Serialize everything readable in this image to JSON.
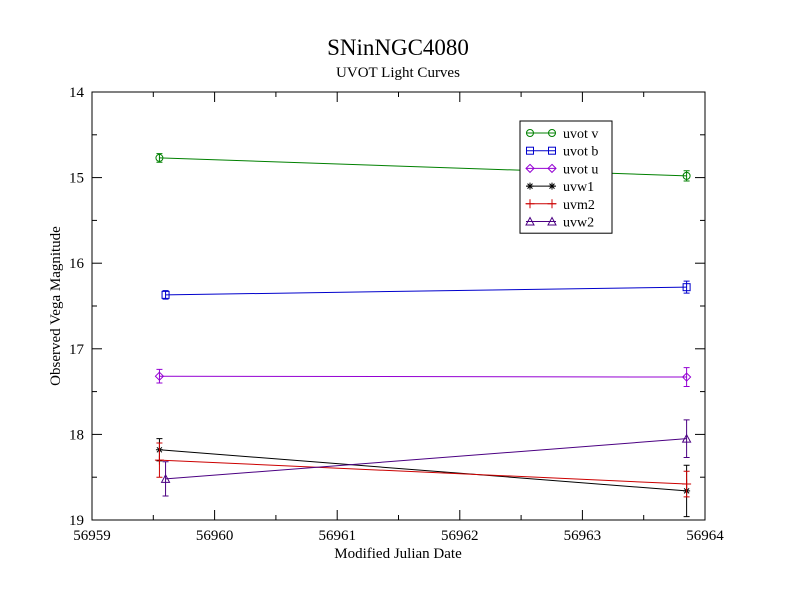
{
  "chart_data": {
    "type": "line",
    "title": "SNinNGC4080",
    "subtitle": "UVOT Light Curves",
    "xlabel": "Modified Julian Date",
    "ylabel": "Observed Vega Magnitude",
    "xlim": [
      56959,
      56964
    ],
    "ylim": [
      14,
      19
    ],
    "y_inverted": true,
    "x_ticks": [
      "56959",
      "56960",
      "56961",
      "56962",
      "56963",
      "56964"
    ],
    "y_ticks": [
      "14",
      "15",
      "16",
      "17",
      "18",
      "19"
    ],
    "grid": false,
    "legend_position": "top-right",
    "series": [
      {
        "name": "uvot v",
        "color": "#008000",
        "marker": "circle",
        "x": [
          56959.55,
          56963.85
        ],
        "y": [
          14.77,
          14.98
        ],
        "err": [
          0.05,
          0.06
        ]
      },
      {
        "name": "uvot b",
        "color": "#0000cc",
        "marker": "square",
        "x": [
          56959.6,
          56963.85
        ],
        "y": [
          16.37,
          16.28
        ],
        "err": [
          0.05,
          0.07
        ]
      },
      {
        "name": "uvot u",
        "color": "#9400d3",
        "marker": "diamond",
        "x": [
          56959.55,
          56963.85
        ],
        "y": [
          17.32,
          17.33
        ],
        "err": [
          0.08,
          0.11
        ]
      },
      {
        "name": "uvw1",
        "color": "#000000",
        "marker": "star",
        "x": [
          56959.55,
          56963.85
        ],
        "y": [
          18.18,
          18.66
        ],
        "err": [
          0.13,
          0.3
        ]
      },
      {
        "name": "uvm2",
        "color": "#cc0000",
        "marker": "plus",
        "x": [
          56959.55,
          56963.85
        ],
        "y": [
          18.3,
          18.58
        ],
        "err": [
          0.2,
          0.15
        ]
      },
      {
        "name": "uvw2",
        "color": "#4b0082",
        "marker": "triangle",
        "x": [
          56959.6,
          56963.85
        ],
        "y": [
          18.52,
          18.05
        ],
        "err": [
          0.2,
          0.22
        ]
      }
    ]
  }
}
